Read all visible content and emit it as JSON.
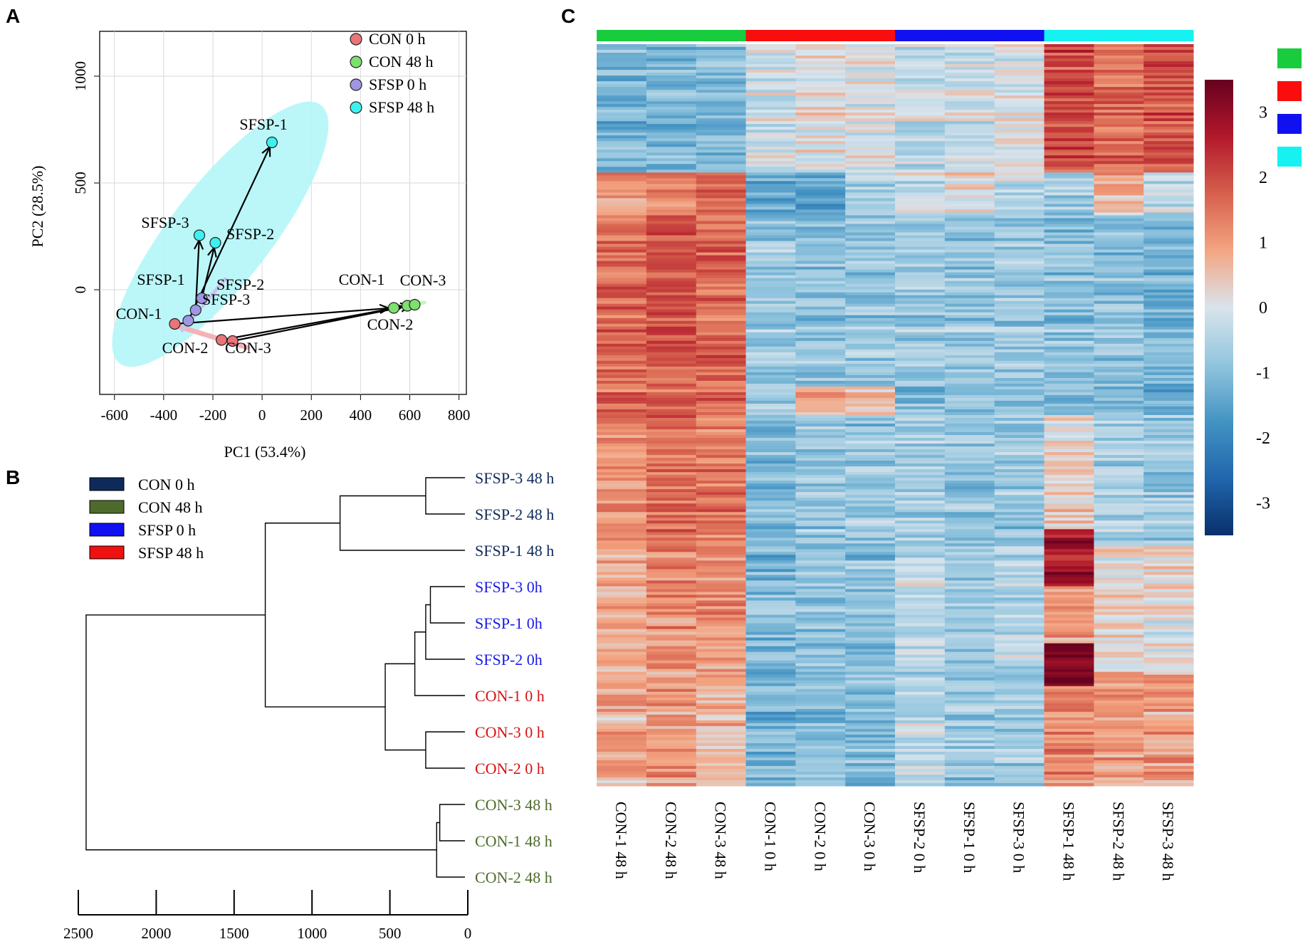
{
  "panel_labels": {
    "a": "A",
    "b": "B",
    "c": "C"
  },
  "chart_data": [
    {
      "panel": "A",
      "type": "scatter",
      "title": "",
      "xlabel": "PC1 (53.4%)",
      "ylabel": "PC2 (28.5%)",
      "xlim": [
        -660,
        830
      ],
      "ylim": [
        -490,
        1210
      ],
      "xticks": [
        -600,
        -400,
        -200,
        0,
        200,
        400,
        600,
        800
      ],
      "xtick_labels": [
        "-600",
        "-400",
        "-200",
        "0",
        "200",
        "400",
        "600",
        "800"
      ],
      "yticks": [
        0,
        500,
        1000
      ],
      "ytick_labels": [
        "0",
        "500",
        "1000"
      ],
      "grid": true,
      "legend_position": "top-right",
      "series": [
        {
          "name": "CON 0 h",
          "color": "#e8757a",
          "points": [
            {
              "label": "CON-1",
              "x": -355,
              "y": -160
            },
            {
              "label": "CON-2",
              "x": -165,
              "y": -235
            },
            {
              "label": "CON-3",
              "x": -120,
              "y": -240
            }
          ]
        },
        {
          "name": "CON 48 h",
          "color": "#7ee06f",
          "points": [
            {
              "label": "CON-1",
              "x": 535,
              "y": -85
            },
            {
              "label": "CON-2",
              "x": 590,
              "y": -75
            },
            {
              "label": "CON-3",
              "x": 620,
              "y": -70
            }
          ]
        },
        {
          "name": "SFSP 0 h",
          "color": "#9f97e3",
          "points": [
            {
              "label": "SFSP-1",
              "x": -300,
              "y": -145
            },
            {
              "label": "SFSP-2",
              "x": -245,
              "y": -40
            },
            {
              "label": "SFSP-3",
              "x": -270,
              "y": -95
            }
          ]
        },
        {
          "name": "SFSP 48 h",
          "color": "#3ef0f0",
          "points": [
            {
              "label": "SFSP-1",
              "x": 40,
              "y": 690
            },
            {
              "label": "SFSP-2",
              "x": -190,
              "y": 220
            },
            {
              "label": "SFSP-3",
              "x": -255,
              "y": 255
            }
          ]
        }
      ],
      "arrows": [
        {
          "from": "SFSP-1 0 h",
          "to": "SFSP-1 48 h"
        },
        {
          "from": "SFSP-2 0 h",
          "to": "SFSP-2 48 h"
        },
        {
          "from": "SFSP-3 0 h",
          "to": "SFSP-3 48 h"
        },
        {
          "from": "CON-1 0 h",
          "to": "CON-1 48 h"
        },
        {
          "from": "CON-2 0 h",
          "to": "CON-2 48 h"
        },
        {
          "from": "CON-3 0 h",
          "to": "CON-3 48 h"
        }
      ],
      "annotations": [
        "SFSP-1",
        "SFSP-3",
        "SFSP-2",
        "SFSP-1",
        "SFSP-2",
        "SFSP-3",
        "CON-1",
        "CON-2",
        "CON-3",
        "CON-1",
        "CON-3",
        "CON-2"
      ]
    },
    {
      "panel": "B",
      "type": "dendrogram",
      "xlim": [
        2500,
        0
      ],
      "xticks": [
        2500,
        2000,
        1500,
        1000,
        500,
        0
      ],
      "xtick_labels": [
        "2500",
        "2000",
        "1500",
        "1000",
        "500",
        "0"
      ],
      "legend": [
        {
          "label": "CON 0 h",
          "color": "#0e2a5a"
        },
        {
          "label": "CON 48 h",
          "color": "#4e6b2b"
        },
        {
          "label": "SFSP 0 h",
          "color": "#1010f0"
        },
        {
          "label": "SFSP 48 h",
          "color": "#f01010"
        }
      ],
      "leaves": [
        {
          "label": "SFSP-3 48 h",
          "color": "#0e2a5a"
        },
        {
          "label": "SFSP-2 48 h",
          "color": "#0e2a5a"
        },
        {
          "label": "SFSP-1 48 h",
          "color": "#0e2a5a"
        },
        {
          "label": "SFSP-3  0h",
          "color": "#1a1ae6"
        },
        {
          "label": "SFSP-1  0h",
          "color": "#1a1ae6"
        },
        {
          "label": "SFSP-2  0h",
          "color": "#1a1ae6"
        },
        {
          "label": "CON-1  0 h",
          "color": "#d41414"
        },
        {
          "label": "CON-3  0 h",
          "color": "#d41414"
        },
        {
          "label": "CON-2  0 h",
          "color": "#d41414"
        },
        {
          "label": "CON-3 48 h",
          "color": "#4e6b2b"
        },
        {
          "label": "CON-1 48 h",
          "color": "#4e6b2b"
        },
        {
          "label": "CON-2 48 h",
          "color": "#4e6b2b"
        }
      ],
      "merges": [
        {
          "a": 0,
          "b": 1,
          "height": 270
        },
        {
          "a": "m0",
          "b": 2,
          "height": 820
        },
        {
          "a": 3,
          "b": 4,
          "height": 240
        },
        {
          "a": "m2",
          "b": 5,
          "height": 270
        },
        {
          "a": "m3",
          "b": 6,
          "height": 340
        },
        {
          "a": 7,
          "b": 8,
          "height": 270
        },
        {
          "a": "m4",
          "b": "m5",
          "height": 530
        },
        {
          "a": "m1",
          "b": "m6",
          "height": 1300
        },
        {
          "a": 9,
          "b": 10,
          "height": 180
        },
        {
          "a": "m8",
          "b": 11,
          "height": 200
        },
        {
          "a": "m7",
          "b": "m9",
          "height": 2450
        }
      ]
    },
    {
      "panel": "C",
      "type": "heatmap",
      "columns": [
        "CON-1 48 h",
        "CON-2 48 h",
        "CON-3 48 h",
        "CON-1   0 h",
        "CON-2   0 h",
        "CON-3   0 h",
        "SFSP-2   0 h",
        "SFSP-1   0 h",
        "SFSP-3   0 h",
        "SFSP-1 48 h",
        "SFSP-2 48 h",
        "SFSP-3 48 h"
      ],
      "column_groups": [
        "CON 48 h",
        "CON 48 h",
        "CON 48 h",
        "CON 0 h",
        "CON 0 h",
        "CON 0 h",
        "SFSP 0 h",
        "SFSP 0 h",
        "SFSP 0 h",
        "SFSP 48 h",
        "SFSP 48 h",
        "SFSP 48 h"
      ],
      "group_colors": [
        "#18cc3e",
        "#fa0d0d",
        "#1010f0",
        "#16f2f2"
      ],
      "color_scale": {
        "min": -3.5,
        "max": 3.5,
        "ticks": [
          3,
          2,
          1,
          0,
          -1,
          -2,
          -3
        ],
        "tick_labels": [
          "3",
          "2",
          "1",
          "0",
          "-1",
          "-2",
          "-3"
        ],
        "stops": [
          "#08306b",
          "#2166ac",
          "#4393c3",
          "#92c5de",
          "#d9e4ec",
          "#f4a582",
          "#d6604d",
          "#b2182b",
          "#67001f"
        ]
      },
      "row_count": 260,
      "row_blocks": [
        {
          "rows": [
            0,
            45
          ],
          "means": [
            -1.1,
            -1.2,
            -1.1,
            -0.2,
            0.1,
            0.0,
            -0.3,
            -0.2,
            0.0,
            2.0,
            1.6,
            1.9
          ]
        },
        {
          "rows": [
            45,
            60
          ],
          "means": [
            1.0,
            1.1,
            1.6,
            -1.5,
            -1.6,
            -0.7,
            -0.3,
            0.1,
            -0.5,
            -0.7,
            0.7,
            -0.3
          ]
        },
        {
          "rows": [
            60,
            120
          ],
          "means": [
            1.7,
            1.9,
            1.7,
            -0.8,
            -0.8,
            -0.8,
            -0.7,
            -0.8,
            -0.7,
            -0.9,
            -0.9,
            -1.1
          ]
        },
        {
          "rows": [
            120,
            130
          ],
          "means": [
            1.5,
            1.6,
            1.6,
            -0.9,
            0.7,
            0.6,
            -1.1,
            -1.1,
            -1.1,
            -1.2,
            -1.1,
            -1.2
          ]
        },
        {
          "rows": [
            130,
            175
          ],
          "means": [
            1.2,
            1.5,
            1.4,
            -1.0,
            -0.8,
            -0.8,
            -0.6,
            -0.8,
            -0.8,
            0.3,
            -0.6,
            -0.8
          ]
        },
        {
          "rows": [
            175,
            220
          ],
          "means": [
            0.7,
            1.2,
            1.1,
            -1.1,
            -1.0,
            -1.0,
            -0.3,
            -0.9,
            -0.4,
            1.0,
            0.2,
            0.1
          ]
        },
        {
          "rows": [
            220,
            260
          ],
          "means": [
            0.8,
            1.1,
            0.7,
            -1.2,
            -1.0,
            -1.0,
            -0.4,
            -0.8,
            -0.7,
            1.3,
            1.0,
            1.0
          ]
        }
      ],
      "highlight_blocks": [
        {
          "rows": [
            170,
            190
          ],
          "col": 9,
          "mean": 2.8
        },
        {
          "rows": [
            210,
            225
          ],
          "col": 9,
          "mean": 3.3
        }
      ]
    }
  ]
}
